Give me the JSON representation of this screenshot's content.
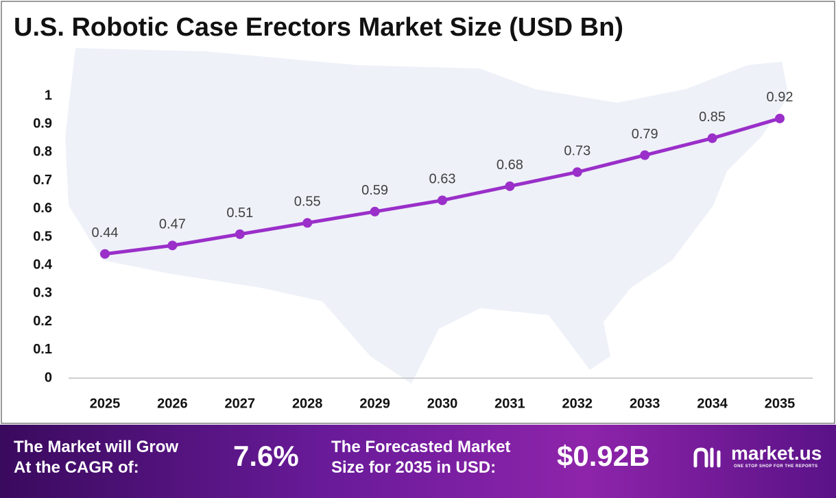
{
  "chart_data": {
    "type": "line",
    "title": "U.S. Robotic Case Erectors Market Size (USD Bn)",
    "categories": [
      "2025",
      "2026",
      "2027",
      "2028",
      "2029",
      "2030",
      "2031",
      "2032",
      "2033",
      "2034",
      "2035"
    ],
    "values": [
      0.44,
      0.47,
      0.51,
      0.55,
      0.59,
      0.63,
      0.68,
      0.73,
      0.79,
      0.85,
      0.92
    ],
    "color": "#9a2fc9",
    "ylim": [
      0,
      1
    ],
    "yticks": [
      0,
      0.1,
      0.2,
      0.3,
      0.4,
      0.5,
      0.6,
      0.7,
      0.8,
      0.9,
      1
    ],
    "grid": false
  },
  "footer": {
    "cagr_text": [
      "The Market will Grow",
      "At the CAGR of:"
    ],
    "cagr_value": "7.6%",
    "forecast_text": [
      "The Forecasted Market",
      "Size for 2035 in USD:"
    ],
    "forecast_value": "$0.92B",
    "brand": "market.us",
    "tagline": "ONE STOP SHOP FOR THE REPORTS"
  }
}
